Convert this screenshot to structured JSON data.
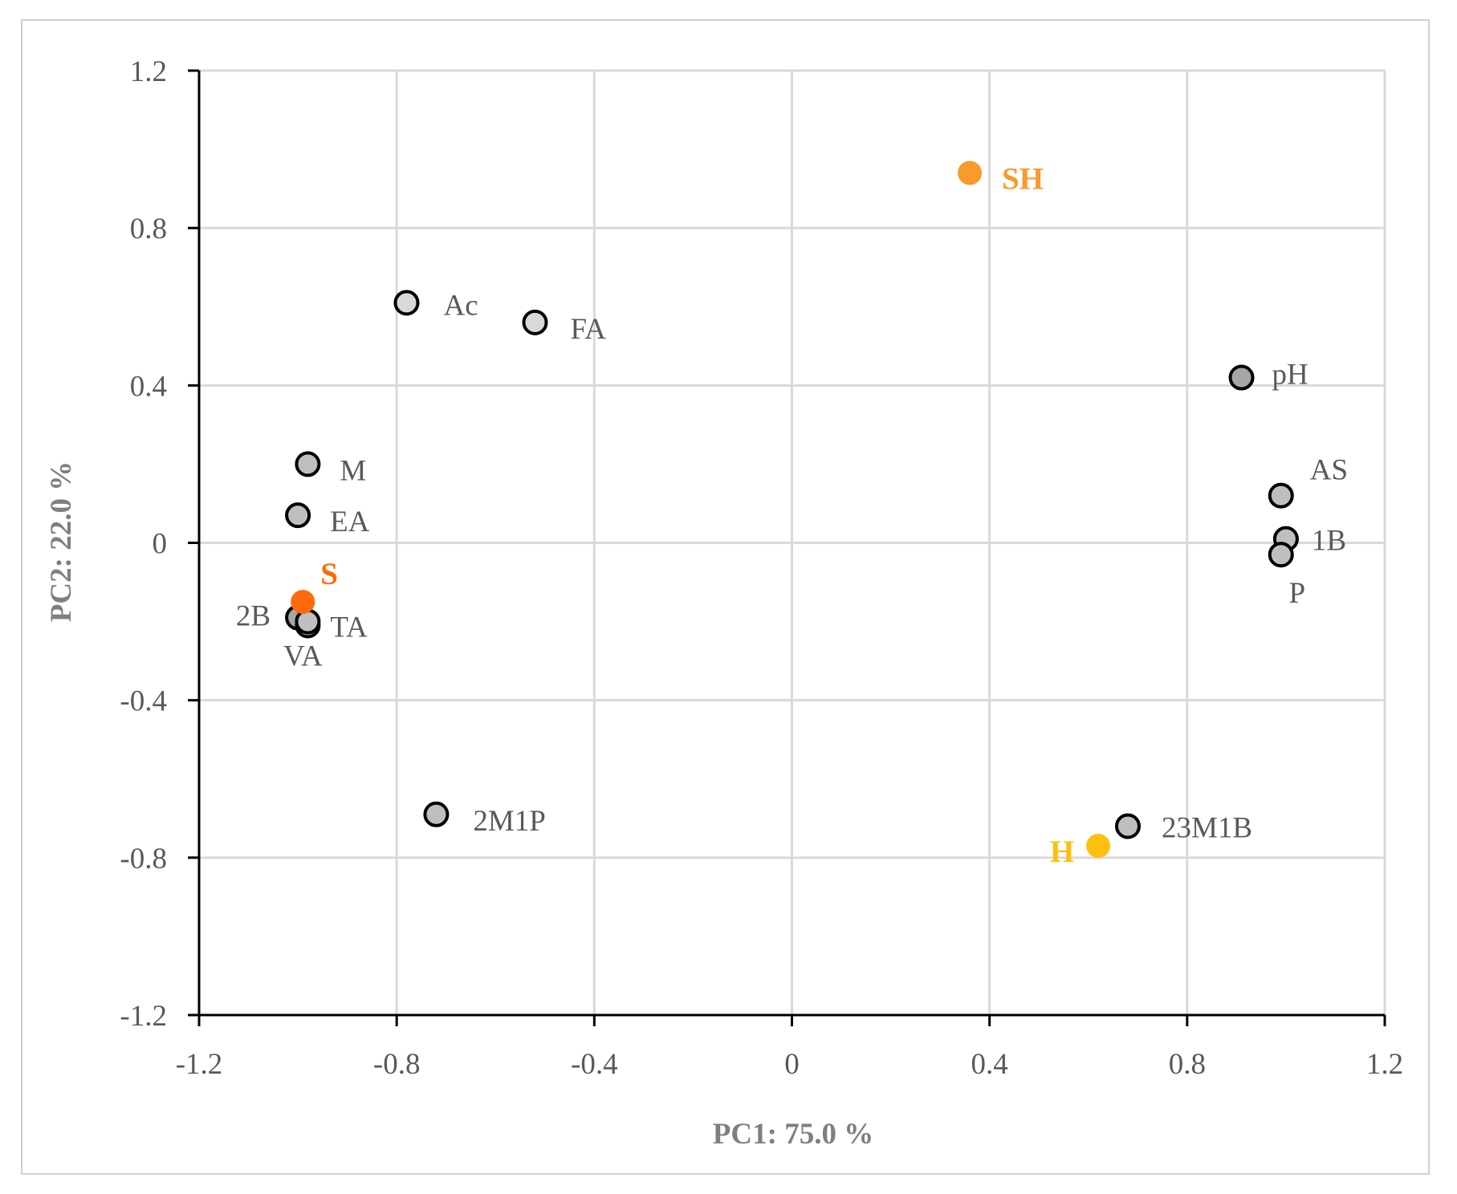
{
  "chart_data": {
    "type": "scatter",
    "title": "",
    "xlabel": "PC1: 75.0 %",
    "ylabel": "PC2: 22.0 %",
    "xlim": [
      -1.2,
      1.2
    ],
    "ylim": [
      -1.2,
      1.2
    ],
    "x_ticks": [
      "-1.2",
      "-0.8",
      "-0.4",
      "0",
      "0.4",
      "0.8",
      "1.2"
    ],
    "y_ticks": [
      "1.2",
      "0.8",
      "0.4",
      "0",
      "-0.4",
      "-0.8",
      "-1.2"
    ],
    "grid": true,
    "legend": "none",
    "series": [
      {
        "name": "variables",
        "points": [
          {
            "label": "Ac",
            "x": -0.78,
            "y": 0.61,
            "fill": "#d9d9d9"
          },
          {
            "label": "FA",
            "x": -0.52,
            "y": 0.56,
            "fill": "#d9d9d9"
          },
          {
            "label": "M",
            "x": -0.98,
            "y": 0.2,
            "fill": "#bfbfbf"
          },
          {
            "label": "EA",
            "x": -1.0,
            "y": 0.07,
            "fill": "#bfbfbf"
          },
          {
            "label": "2B",
            "x": -1.0,
            "y": -0.19,
            "fill": "#a6a6a6"
          },
          {
            "label": "TA",
            "x": -0.98,
            "y": -0.21,
            "fill": "#bfbfbf"
          },
          {
            "label": "VA",
            "x": -0.98,
            "y": -0.2,
            "fill": "#bfbfbf"
          },
          {
            "label": "2M1P",
            "x": -0.72,
            "y": -0.69,
            "fill": "#bfbfbf"
          },
          {
            "label": "pH",
            "x": 0.91,
            "y": 0.42,
            "fill": "#a6a6a6"
          },
          {
            "label": "AS",
            "x": 0.99,
            "y": 0.12,
            "fill": "#bfbfbf"
          },
          {
            "label": "1B",
            "x": 1.0,
            "y": 0.01,
            "fill": "#bfbfbf"
          },
          {
            "label": "P",
            "x": 0.99,
            "y": -0.03,
            "fill": "#bfbfbf"
          },
          {
            "label": "23M1B",
            "x": 0.68,
            "y": -0.72,
            "fill": "#bfbfbf"
          }
        ]
      },
      {
        "name": "observations",
        "points": [
          {
            "label": "SH",
            "x": 0.36,
            "y": 0.94,
            "color": "#f89a2c"
          },
          {
            "label": "S",
            "x": -0.99,
            "y": -0.15,
            "color": "#fd6a0c"
          },
          {
            "label": "H",
            "x": 0.62,
            "y": -0.77,
            "color": "#fdc010"
          }
        ]
      }
    ]
  }
}
